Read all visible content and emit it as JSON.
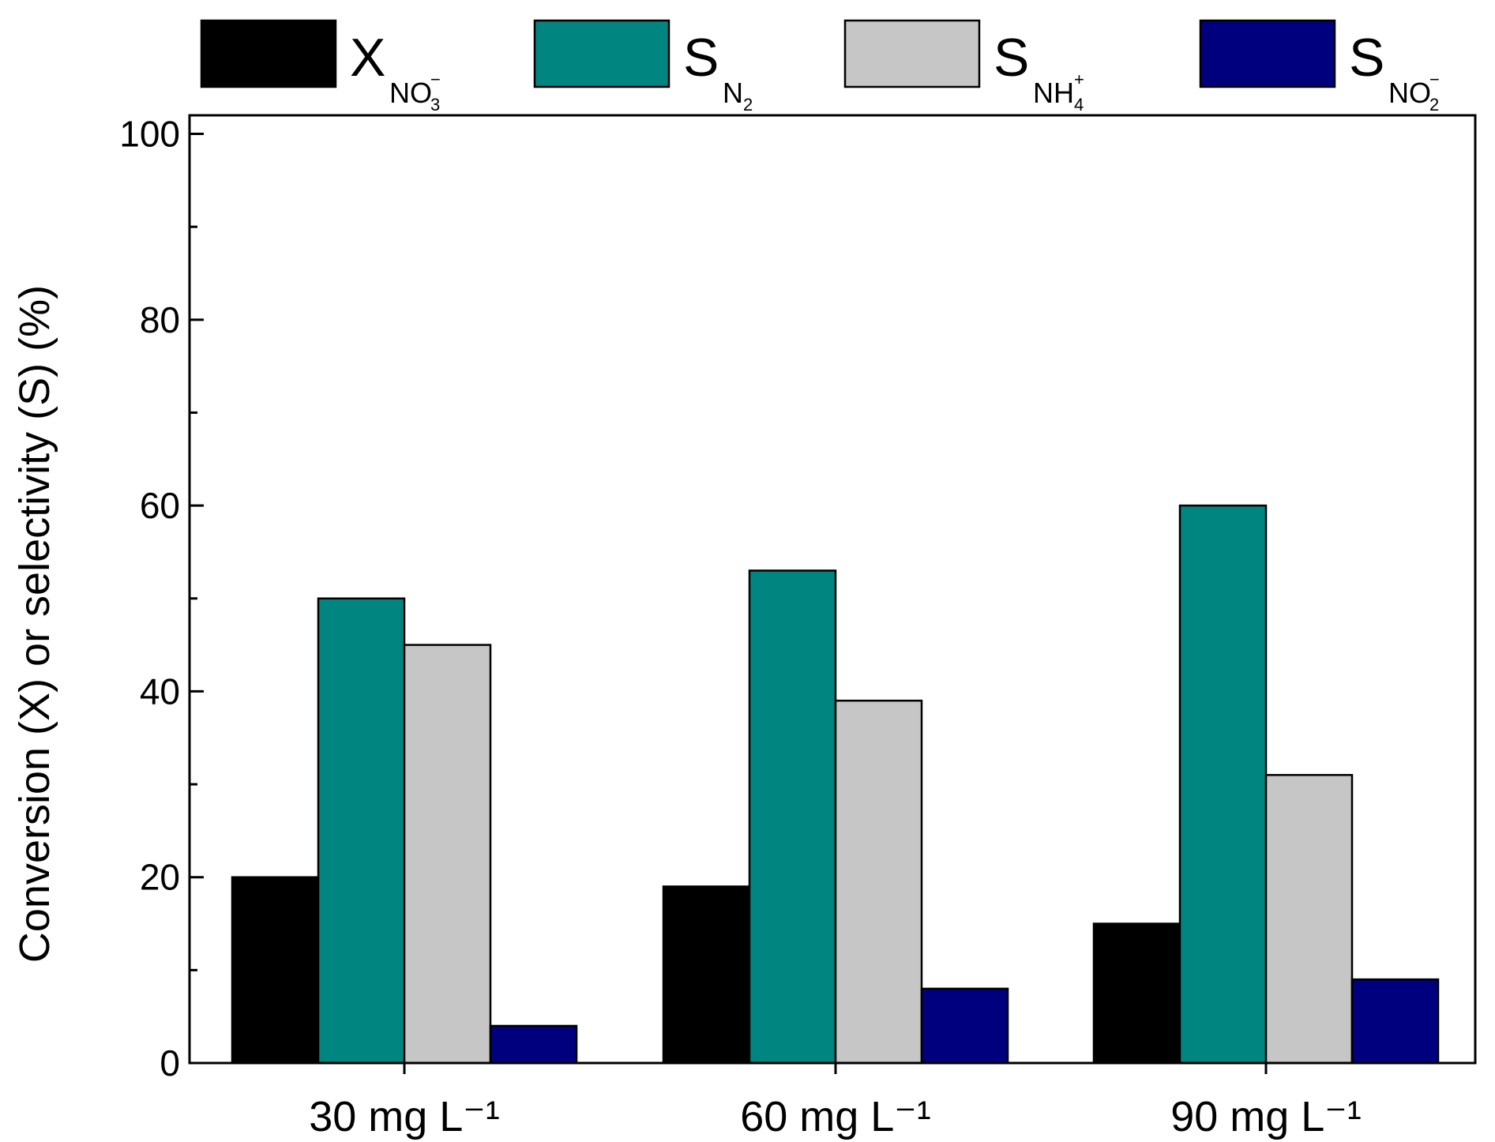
{
  "chart_data": {
    "type": "bar",
    "title": "",
    "xlabel": "",
    "ylabel": "Conversion (X) or selectivity (S) (%)",
    "ylim": [
      0,
      102
    ],
    "yticks": [
      "0",
      "20",
      "40",
      "60",
      "80",
      "100"
    ],
    "ytick_values": [
      0,
      20,
      40,
      60,
      80,
      100
    ],
    "categories": [
      "30 mg L⁻¹",
      "60 mg L⁻¹",
      "90 mg L⁻¹"
    ],
    "legend_position": "top",
    "series": [
      {
        "name": "X_NO3-",
        "symbol": "X",
        "subscript": "NO",
        "sub_sub": "3",
        "sub_sup": "−",
        "color": "#000000",
        "values": [
          20,
          19,
          15
        ]
      },
      {
        "name": "S_N2",
        "symbol": "S",
        "subscript": "N",
        "sub_sub": "2",
        "sub_sup": "",
        "color": "#008580",
        "values": [
          50,
          53,
          60
        ]
      },
      {
        "name": "S_NH4+",
        "symbol": "S",
        "subscript": "NH",
        "sub_sub": "4",
        "sub_sup": "+",
        "color": "#c6c6c6",
        "values": [
          45,
          39,
          31
        ]
      },
      {
        "name": "S_NO2-",
        "symbol": "S",
        "subscript": "NO",
        "sub_sub": "2",
        "sub_sup": "−",
        "color": "#00007f",
        "values": [
          4,
          8,
          9
        ]
      }
    ]
  }
}
